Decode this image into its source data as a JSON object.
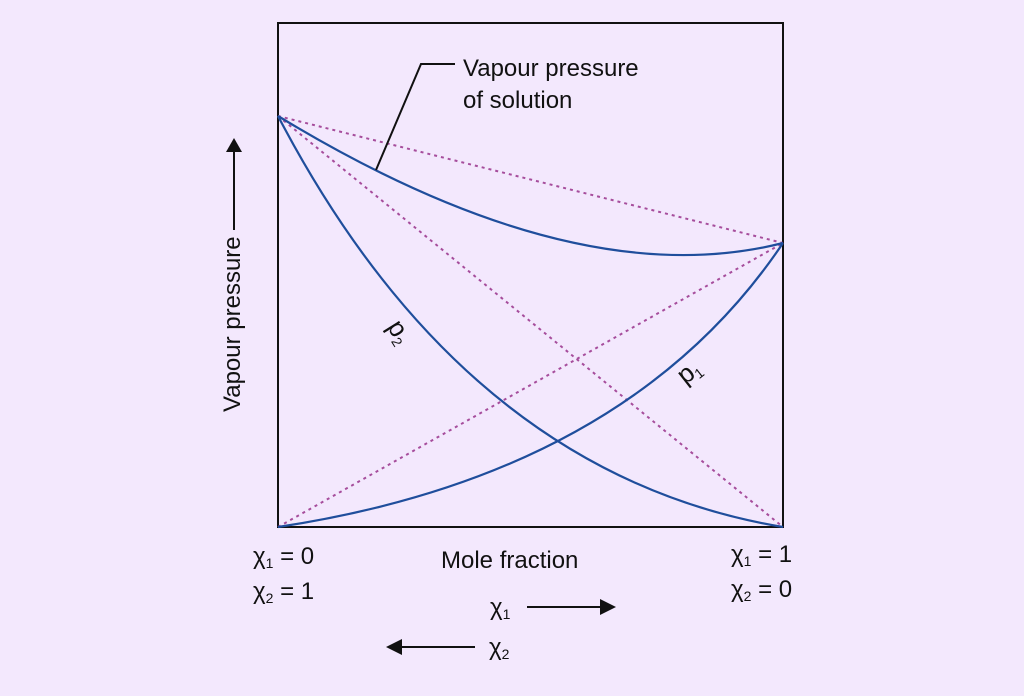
{
  "labels": {
    "y_axis": "Vapour pressure",
    "x_axis": "Mole fraction",
    "callout_line1": "Vapour pressure",
    "callout_line2": "of solution",
    "p2": "p",
    "p2_sub": "2",
    "p1": "p",
    "p1_sub": "1",
    "left_x1": "χ",
    "left_x1_sub": "1",
    "left_x1_val": " = 0",
    "left_x2": "χ",
    "left_x2_sub": "2",
    "left_x2_val": " = 1",
    "right_x1": "χ",
    "right_x1_sub": "1",
    "right_x1_val": " = 1",
    "right_x2": "χ",
    "right_x2_sub": "2",
    "right_x2_val": " = 0",
    "arrow_x1": "χ",
    "arrow_x1_sub": "1",
    "arrow_x2": "χ",
    "arrow_x2_sub": "2"
  },
  "colors": {
    "background": "#f3e8fd",
    "curve": "#1f4e9c",
    "ideal_dotted": "#a64d9c",
    "frame": "#111111"
  }
}
